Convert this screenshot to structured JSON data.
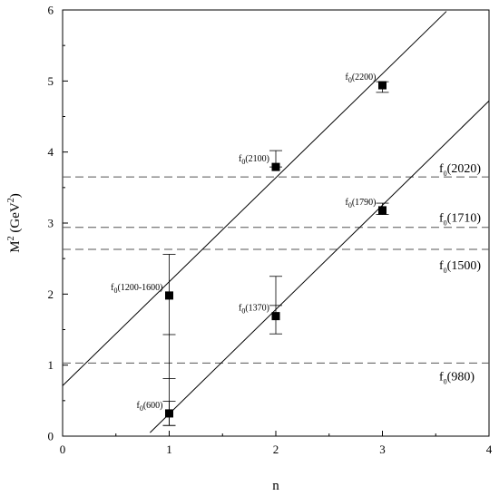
{
  "chart_data": {
    "type": "scatter",
    "title": "",
    "xlabel": "n",
    "ylabel": "M",
    "ylabel_sup": "2",
    "ylabel_unit_open": " (GeV",
    "ylabel_unit_sup": "2",
    "ylabel_unit_close": ")",
    "xlim": [
      0,
      4
    ],
    "ylim": [
      0,
      6
    ],
    "xticks": [
      "0",
      "1",
      "2",
      "3",
      "4"
    ],
    "yticks": [
      "0",
      "1",
      "2",
      "3",
      "4",
      "5",
      "6"
    ],
    "grid": false,
    "points": [
      {
        "name": "f",
        "sub": "0",
        "paren": "(600)",
        "x": 1,
        "y": 0.32,
        "err_low": 0.17,
        "err_high": 0.17
      },
      {
        "name": "f",
        "sub": "0",
        "paren": "(1200-1600)",
        "x": 1,
        "y": 1.98,
        "err_low": 1.83,
        "err_high": 0.58
      },
      {
        "name": "f",
        "sub": "0",
        "paren": "(1370)",
        "x": 2,
        "y": 1.69,
        "err_low": 0.25,
        "err_high": 0.56
      },
      {
        "name": "f",
        "sub": "0",
        "paren": "(2100)",
        "x": 2,
        "y": 3.79,
        "err_low": 0.0,
        "err_high": 0.23
      },
      {
        "name": "f",
        "sub": "0",
        "paren": "(1790)",
        "x": 3,
        "y": 3.18,
        "err_low": 0.06,
        "err_high": 0.1
      },
      {
        "name": "f",
        "sub": "0",
        "paren": "(2200)",
        "x": 3,
        "y": 4.94,
        "err_low": 0.1,
        "err_high": 0.05
      }
    ],
    "extra_ticks": [
      {
        "x": 1,
        "y": 1.43
      },
      {
        "x": 1,
        "y": 0.81
      },
      {
        "x": 2,
        "y": 1.84
      }
    ],
    "trajectories": [
      {
        "x": [
          0.0,
          3.6
        ],
        "y": [
          0.71,
          5.98
        ]
      },
      {
        "x": [
          0.82,
          4.0
        ],
        "y": [
          0.05,
          4.72
        ]
      }
    ],
    "reference_lines": [
      {
        "name": "f",
        "sub": "0",
        "paren": "(2020)",
        "y": 3.65
      },
      {
        "name": "f",
        "sub": "0",
        "paren": "(1710)",
        "y": 2.94
      },
      {
        "name": "f",
        "sub": "0",
        "paren": "(1500)",
        "y": 2.63
      },
      {
        "name": "f",
        "sub": "0",
        "paren": "(980)",
        "y": 1.03
      }
    ]
  }
}
